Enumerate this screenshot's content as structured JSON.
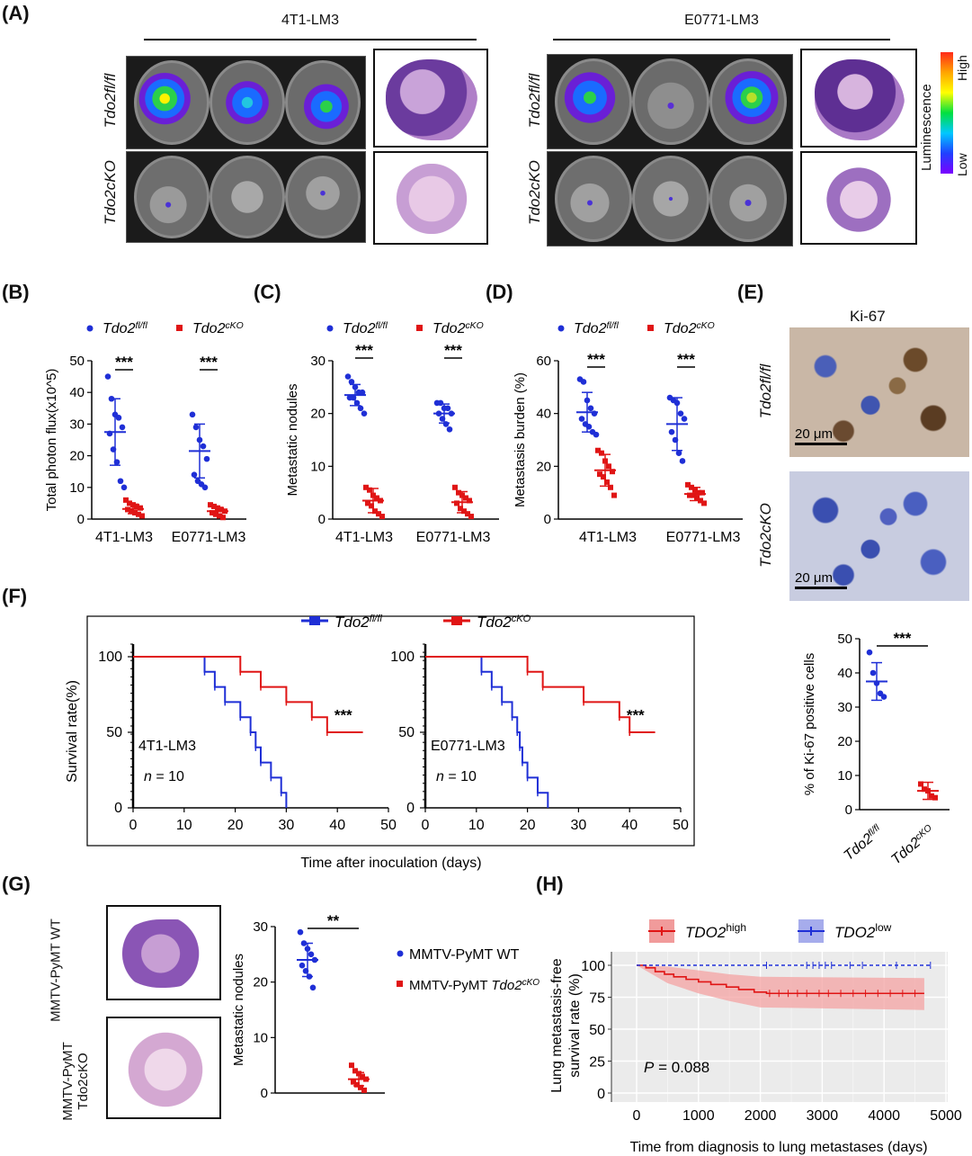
{
  "panels": {
    "A": {
      "label": "(A)",
      "groups": [
        "4T1-LM3",
        "E0771-LM3"
      ],
      "rows": [
        "Tdo2fl/fl",
        "Tdo2cKO"
      ],
      "luminescence": {
        "title": "Luminescence",
        "high": "High",
        "low": "Low"
      }
    },
    "B": {
      "label": "(B)"
    },
    "C": {
      "label": "(C)"
    },
    "D": {
      "label": "(D)"
    },
    "E": {
      "label": "(E)",
      "title": "Ki-67",
      "rows": [
        "Tdo2fl/fl",
        "Tdo2cKO"
      ],
      "scale_bar": "20 μm"
    },
    "F": {
      "label": "(F)",
      "xlabel": "Time after inoculation (days)",
      "ylabel": "Survival rate(%)"
    },
    "G": {
      "label": "(G)",
      "row_wt": "MMTV-PyMT WT",
      "row_ko": "MMTV-PyMT Tdo2cKO"
    },
    "H": {
      "label": "(H)"
    }
  },
  "legend": {
    "fl": "Tdo2fl/fl",
    "ko": "Tdo2cKO"
  },
  "colors": {
    "blue": "#1f2fd6",
    "red": "#e01515"
  },
  "chart_data": [
    {
      "id": "B",
      "type": "scatter",
      "ylabel": "Total photon flux(x10^5)",
      "ylim": [
        0,
        50
      ],
      "yticks": [
        0,
        10,
        20,
        30,
        40,
        50
      ],
      "categories": [
        "4T1-LM3",
        "E0771-LM3"
      ],
      "significance": [
        "***",
        "***"
      ],
      "series": [
        {
          "name": "Tdo2fl/fl",
          "color": "#1f2fd6",
          "mean": [
            27.5,
            21.5
          ],
          "sd": [
            10.5,
            8.5
          ],
          "points": [
            [
              45,
              38,
              33,
              32,
              29,
              27,
              22,
              18,
              12,
              10
            ],
            [
              33,
              29,
              25,
              23,
              19,
              14,
              12,
              11,
              10
            ]
          ]
        },
        {
          "name": "Tdo2cKO",
          "color": "#e01515",
          "mean": [
            3.2,
            2.5
          ],
          "sd": [
            1.5,
            1.2
          ],
          "points": [
            [
              6,
              5,
              4.5,
              4,
              3.5,
              3,
              2.5,
              2,
              1.5,
              1.0
            ],
            [
              4.5,
              4,
              3.5,
              3,
              2.5,
              2,
              1.5,
              1.0,
              0.5
            ]
          ]
        }
      ]
    },
    {
      "id": "C",
      "type": "scatter",
      "ylabel": "Metastatic nodules",
      "ylim": [
        0,
        30
      ],
      "yticks": [
        0,
        10,
        20,
        30
      ],
      "categories": [
        "4T1-LM3",
        "E0771-LM3"
      ],
      "significance": [
        "***",
        "***"
      ],
      "series": [
        {
          "name": "Tdo2fl/fl",
          "color": "#1f2fd6",
          "mean": [
            23.5,
            20
          ],
          "sd": [
            2,
            1.8
          ],
          "points": [
            [
              27,
              26,
              25,
              24,
              24,
              23,
              23,
              22,
              21,
              20
            ],
            [
              22,
              22,
              21,
              21,
              20,
              20,
              19,
              18,
              17
            ]
          ]
        },
        {
          "name": "Tdo2cKO",
          "color": "#e01515",
          "mean": [
            3.5,
            3.2
          ],
          "sd": [
            2.3,
            2
          ],
          "points": [
            [
              6,
              5.5,
              4.5,
              4,
              3.5,
              3,
              2.5,
              1.5,
              1,
              0.5
            ],
            [
              6,
              5,
              4.5,
              4,
              3.5,
              3,
              2,
              1.5,
              1,
              0.5
            ]
          ]
        }
      ]
    },
    {
      "id": "D",
      "type": "scatter",
      "ylabel": "Metastasis burden (%)",
      "ylim": [
        0,
        60
      ],
      "yticks": [
        0,
        20,
        40,
        60
      ],
      "categories": [
        "4T1-LM3",
        "E0771-LM3"
      ],
      "significance": [
        "***",
        "***"
      ],
      "series": [
        {
          "name": "Tdo2fl/fl",
          "color": "#1f2fd6",
          "mean": [
            40.5,
            36
          ],
          "sd": [
            7.5,
            10
          ],
          "points": [
            [
              53,
              52,
              45,
              42,
              40,
              38,
              36,
              35,
              33,
              32
            ],
            [
              46,
              45,
              44,
              40,
              38,
              33,
              30,
              25,
              22
            ]
          ]
        },
        {
          "name": "Tdo2cKO",
          "color": "#e01515",
          "mean": [
            18.5,
            9.5
          ],
          "sd": [
            6,
            2.5
          ],
          "points": [
            [
              26,
              25,
              22,
              20,
              18,
              17,
              16,
              14,
              12,
              9
            ],
            [
              13,
              12,
              11,
              10,
              10,
              9,
              9,
              8,
              7,
              6
            ]
          ]
        }
      ]
    },
    {
      "id": "E",
      "type": "scatter",
      "ylabel": "% of Ki-67 positive cells",
      "ylim": [
        0,
        50
      ],
      "yticks": [
        0,
        10,
        20,
        30,
        40,
        50
      ],
      "categories": [
        "Tdo2fl/fl",
        "Tdo2cKO"
      ],
      "significance": [
        "***"
      ],
      "series": [
        {
          "name": "Tdo2fl/fl",
          "color": "#1f2fd6",
          "mean": [
            37.5
          ],
          "sd": [
            5.5
          ],
          "points": [
            [
              46,
              40,
              37,
              34,
              33
            ]
          ]
        },
        {
          "name": "Tdo2cKO",
          "color": "#e01515",
          "mean": [
            5.5
          ],
          "sd": [
            2.5
          ],
          "points": [
            [
              7.5,
              6,
              5.5,
              4,
              3.5
            ]
          ]
        }
      ]
    },
    {
      "id": "F1",
      "type": "line",
      "xlabel": "",
      "ylabel": "",
      "xlim": [
        0,
        50
      ],
      "ylim": [
        0,
        100
      ],
      "xticks": [
        0,
        10,
        20,
        30,
        40,
        50
      ],
      "yticks": [
        0,
        50,
        100
      ],
      "annotation": "4T1-LM3",
      "n": "n = 10",
      "significance": "***",
      "series": [
        {
          "name": "Tdo2fl/fl",
          "color": "#1f2fd6",
          "steps": [
            [
              0,
              100
            ],
            [
              14,
              90
            ],
            [
              16,
              80
            ],
            [
              18,
              70
            ],
            [
              21,
              60
            ],
            [
              23,
              50
            ],
            [
              24,
              40
            ],
            [
              25,
              30
            ],
            [
              27,
              20
            ],
            [
              29,
              10
            ],
            [
              30,
              0
            ]
          ]
        },
        {
          "name": "Tdo2cKO",
          "color": "#e01515",
          "steps": [
            [
              0,
              100
            ],
            [
              21,
              90
            ],
            [
              25,
              80
            ],
            [
              30,
              70
            ],
            [
              35,
              60
            ],
            [
              38,
              50
            ],
            [
              45,
              50
            ]
          ]
        }
      ]
    },
    {
      "id": "F2",
      "type": "line",
      "xlabel": "",
      "ylabel": "",
      "xlim": [
        0,
        50
      ],
      "ylim": [
        0,
        100
      ],
      "xticks": [
        0,
        10,
        20,
        30,
        40,
        50
      ],
      "yticks": [
        0,
        50,
        100
      ],
      "annotation": "E0771-LM3",
      "n": "n = 10",
      "significance": "***",
      "series": [
        {
          "name": "Tdo2fl/fl",
          "color": "#1f2fd6",
          "steps": [
            [
              0,
              100
            ],
            [
              11,
              90
            ],
            [
              13,
              80
            ],
            [
              15,
              70
            ],
            [
              17,
              60
            ],
            [
              18,
              50
            ],
            [
              18.5,
              40
            ],
            [
              19,
              30
            ],
            [
              20,
              20
            ],
            [
              22,
              10
            ],
            [
              24,
              0
            ]
          ]
        },
        {
          "name": "Tdo2cKO",
          "color": "#e01515",
          "steps": [
            [
              0,
              100
            ],
            [
              20,
              90
            ],
            [
              23,
              80
            ],
            [
              31,
              70
            ],
            [
              38,
              60
            ],
            [
              40,
              50
            ],
            [
              45,
              50
            ]
          ]
        }
      ]
    },
    {
      "id": "G",
      "type": "scatter",
      "ylabel": "Metastatic nodules",
      "ylim": [
        0,
        30
      ],
      "yticks": [
        0,
        10,
        20,
        30
      ],
      "categories": [
        "MMTV-PyMT WT",
        "MMTV-PyMT Tdo2cKO"
      ],
      "significance": [
        "**"
      ],
      "series": [
        {
          "name": "MMTV-PyMT WT",
          "color": "#1f2fd6",
          "mean": [
            24
          ],
          "sd": [
            3
          ],
          "points": [
            [
              29,
              27,
              26,
              25,
              24,
              23,
              22,
              21,
              19
            ]
          ]
        },
        {
          "name": "MMTV-PyMT Tdo2cKO",
          "color": "#e01515",
          "mean": [
            2.5
          ],
          "sd": [
            1.2
          ],
          "points": [
            [
              5,
              4,
              3.5,
              3,
              2.5,
              2,
              1.5,
              1,
              0.5
            ]
          ]
        }
      ]
    },
    {
      "id": "H",
      "type": "line",
      "xlabel": "Time from diagnosis to  lung metastases (days)",
      "ylabel": "Lung metastasis-free survival rate (%)",
      "xlim": [
        0,
        5000
      ],
      "ylim": [
        0,
        100
      ],
      "xticks": [
        0,
        1000,
        2000,
        3000,
        4000,
        5000
      ],
      "yticks": [
        0,
        25,
        50,
        75,
        100
      ],
      "pvalue": "P = 0.088",
      "series": [
        {
          "name": "TDO2high",
          "color": "#e01515",
          "steps": [
            [
              0,
              100
            ],
            [
              150,
              98
            ],
            [
              300,
              95
            ],
            [
              450,
              93
            ],
            [
              600,
              91
            ],
            [
              800,
              89
            ],
            [
              1000,
              87
            ],
            [
              1200,
              85
            ],
            [
              1450,
              83
            ],
            [
              1650,
              81
            ],
            [
              1900,
              79
            ],
            [
              2100,
              78
            ],
            [
              4650,
              78
            ]
          ],
          "ci_upper": [
            [
              0,
              100
            ],
            [
              500,
              99
            ],
            [
              1000,
              96
            ],
            [
              1500,
              93
            ],
            [
              2000,
              91
            ],
            [
              4650,
              90
            ]
          ],
          "ci_lower": [
            [
              0,
              100
            ],
            [
              500,
              86
            ],
            [
              1000,
              78
            ],
            [
              1500,
              72
            ],
            [
              2000,
              67
            ],
            [
              4650,
              65
            ]
          ]
        },
        {
          "name": "TDO2low",
          "color": "#1f2fd6",
          "steps": [
            [
              0,
              100
            ],
            [
              4750,
              100
            ]
          ]
        }
      ]
    }
  ]
}
